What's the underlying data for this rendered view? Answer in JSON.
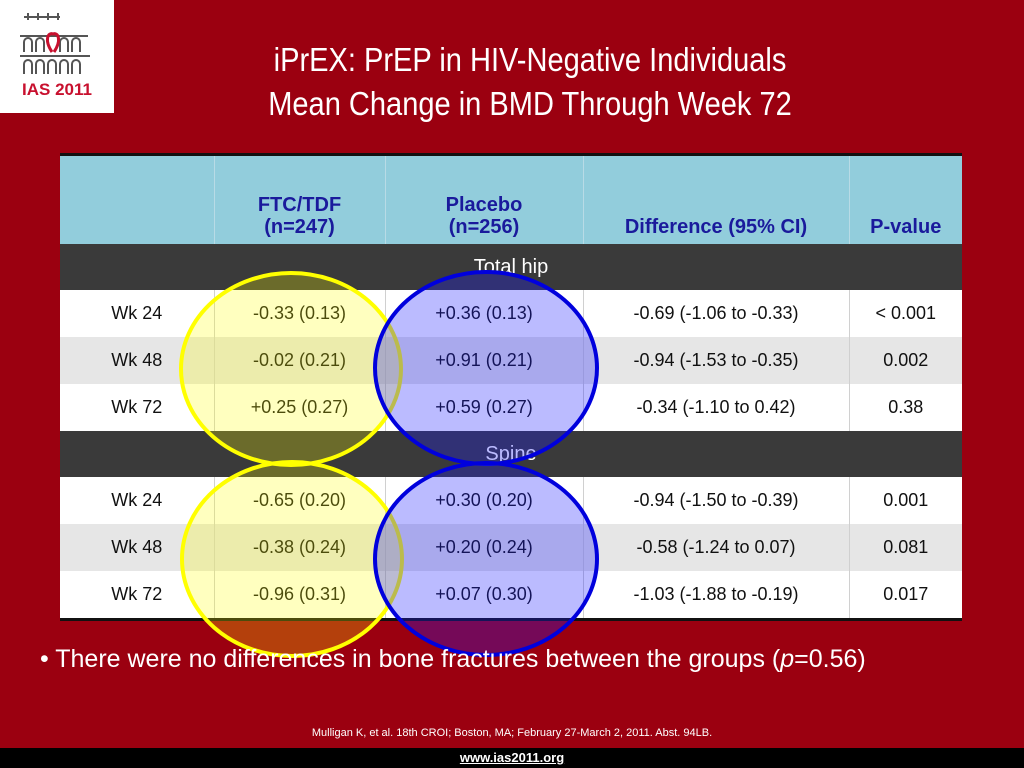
{
  "logo": {
    "text": "IAS 2011"
  },
  "title": {
    "line1": "iPrEX: PrEP in HIV-Negative Individuals",
    "line2": "Mean Change in BMD Through Week 72"
  },
  "table": {
    "headers": [
      {
        "line1": "",
        "line2": ""
      },
      {
        "line1": "FTC/TDF",
        "line2": "(n=247)"
      },
      {
        "line1": "Placebo",
        "line2": "(n=256)"
      },
      {
        "line1": "",
        "line2": "Difference (95% CI)"
      },
      {
        "line1": "",
        "line2": "P-value"
      }
    ],
    "sections": [
      {
        "label": "Total hip",
        "rows": [
          [
            "Wk 24",
            "-0.33 (0.13)",
            "+0.36 (0.13)",
            "-0.69 (-1.06 to -0.33)",
            "< 0.001"
          ],
          [
            "Wk 48",
            "-0.02 (0.21)",
            "+0.91 (0.21)",
            "-0.94 (-1.53 to -0.35)",
            "0.002"
          ],
          [
            "Wk 72",
            "+0.25 (0.27)",
            "+0.59 (0.27)",
            "-0.34 (-1.10 to 0.42)",
            "0.38"
          ]
        ]
      },
      {
        "label": "Spine",
        "rows": [
          [
            "Wk 24",
            "-0.65 (0.20)",
            "+0.30 (0.20)",
            "-0.94 (-1.50 to -0.39)",
            "0.001"
          ],
          [
            "Wk 48",
            "-0.38 (0.24)",
            "+0.20 (0.24)",
            "-0.58 (-1.24 to 0.07)",
            "0.081"
          ],
          [
            "Wk 72",
            "-0.96 (0.31)",
            "+0.07 (0.30)",
            "-1.03 (-1.88 to -0.19)",
            "0.017"
          ]
        ]
      }
    ]
  },
  "bullet": {
    "text_before": "• There were no differences in bone fractures between the groups (",
    "p_symbol": "p",
    "text_after": "=0.56)"
  },
  "citation": "Mulligan K, et al. 18th CROI; Boston, MA; February 27-March 2, 2011. Abst. 94LB.",
  "footer": {
    "url": "www.ias2011.org"
  },
  "colors": {
    "background": "#9b0010",
    "header_fill": "#92cddc",
    "header_text": "#1a1a9c",
    "section_fill": "#3a3a3a",
    "highlight_yellow": "#ffff00",
    "highlight_blue": "#0000dd"
  }
}
